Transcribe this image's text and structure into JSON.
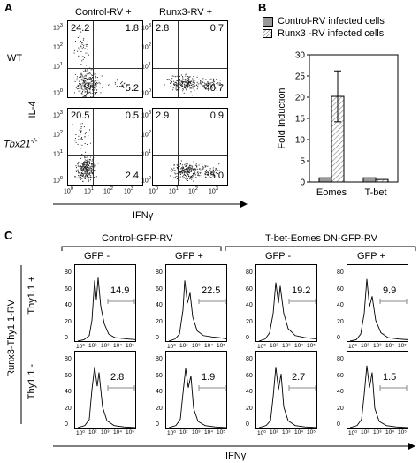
{
  "panel_a": {
    "letter": "A",
    "col_labels": [
      "Control-RV +",
      "Runx3-RV +"
    ],
    "row_labels": [
      "WT",
      "Tbx21"
    ],
    "row2_sup": "-/-",
    "y_axis_label": "IL-4",
    "x_axis_label": "IFNγ",
    "quadrants": [
      {
        "ul": "24.2",
        "ur": "1.8",
        "lr": "5.2"
      },
      {
        "ul": "2.8",
        "ur": "0.7",
        "lr": "40.7"
      },
      {
        "ul": "20.5",
        "ur": "0.5",
        "lr": "2.4"
      },
      {
        "ul": "2.9",
        "ur": "0.9",
        "lr": "35.0"
      }
    ]
  },
  "panel_b": {
    "letter": "B",
    "chart_data": {
      "type": "bar",
      "categories": [
        "Eomes",
        "T-bet"
      ],
      "series": [
        {
          "name": "Control-RV infected cells",
          "values": [
            1.0,
            1.0
          ],
          "fill": "#9a9a9a"
        },
        {
          "name": "Runx3 -RV infected cells",
          "values": [
            20.2,
            0.6
          ],
          "fill": "hatch"
        }
      ],
      "error": [
        [
          0,
          0
        ],
        [
          6.0,
          0
        ]
      ],
      "ylabel": "Fold Induction",
      "ylim": [
        0,
        30
      ],
      "yticks": [
        0,
        5,
        10,
        15,
        20,
        25,
        30
      ]
    }
  },
  "panel_c": {
    "letter": "C",
    "group_labels": [
      "Control-GFP-RV",
      "T-bet-Eomes DN-GFP-RV"
    ],
    "col_labels": [
      "GFP -",
      "GFP +",
      "GFP -",
      "GFP +"
    ],
    "row_outer_label": "Runx3-Thy1.1-RV",
    "row_labels": [
      "Thy1.1 +",
      "Thy1.1 -"
    ],
    "x_axis_label": "IFNγ",
    "yticks": [
      "80",
      "60",
      "40",
      "20",
      "0"
    ],
    "gate_values": [
      [
        "14.9",
        "22.5",
        "19.2",
        "9.9"
      ],
      [
        "2.8",
        "1.9",
        "2.7",
        "1.5"
      ]
    ]
  }
}
